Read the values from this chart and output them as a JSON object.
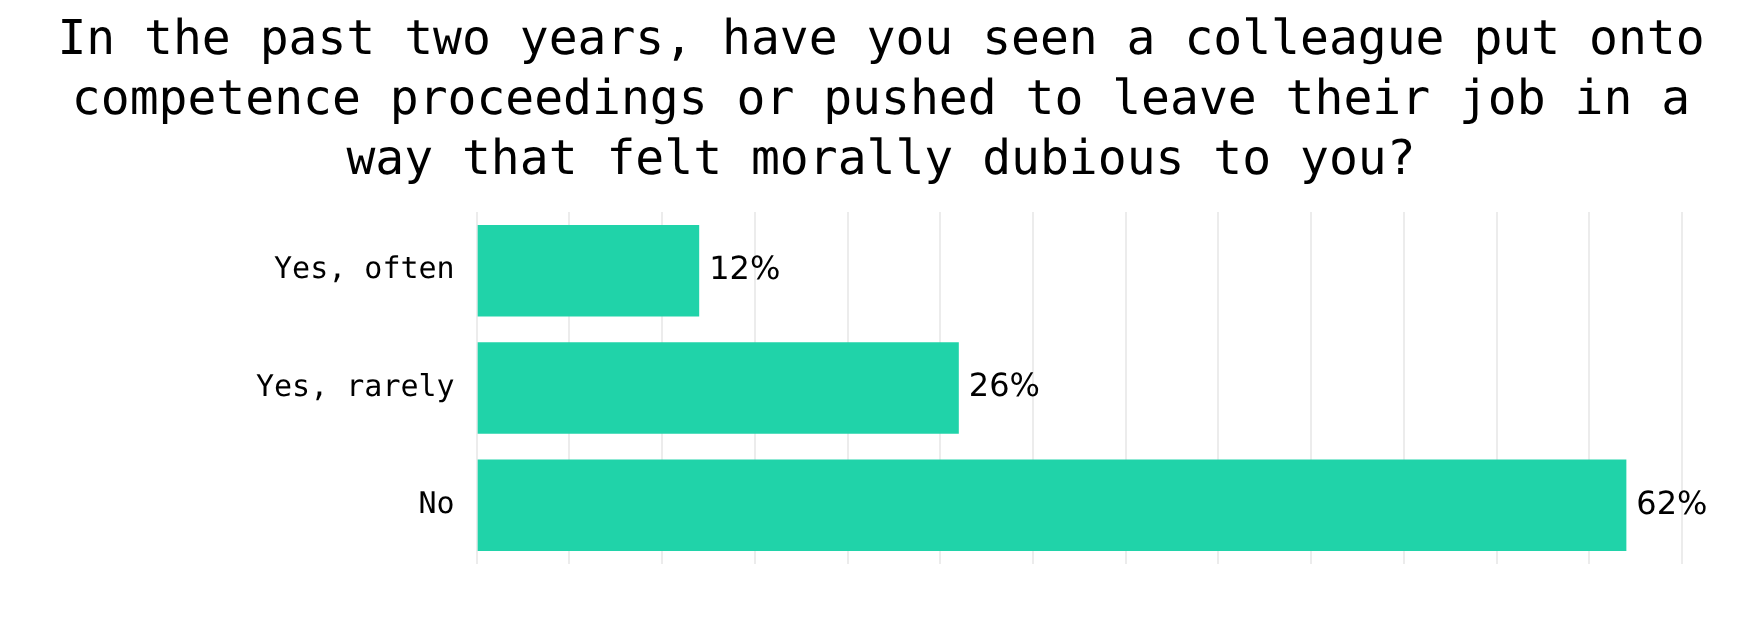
{
  "chart_data": {
    "type": "bar",
    "orientation": "horizontal",
    "title": "In the past two years, have you seen a colleague put onto competence proceedings or pushed to leave their job in a way that felt morally dubious to you?",
    "categories": [
      "Yes, often",
      "Yes, rarely",
      "No"
    ],
    "values": [
      12,
      26,
      62
    ],
    "value_labels": [
      "12%",
      "26%",
      "62%"
    ],
    "color": "#20d3a9",
    "xlim": [
      0,
      65
    ],
    "xticks": [
      {
        "value": 0,
        "label": null
      },
      {
        "value": 5,
        "label": null
      },
      {
        "value": 10,
        "label": null
      },
      {
        "value": 15,
        "label": null
      },
      {
        "value": 20,
        "label": null
      },
      {
        "value": 25,
        "label": null
      },
      {
        "value": 30,
        "label": null
      },
      {
        "value": 35,
        "label": null
      },
      {
        "value": 40,
        "label": null
      },
      {
        "value": 45,
        "label": null
      },
      {
        "value": 50,
        "label": null
      },
      {
        "value": 55,
        "label": null
      },
      {
        "value": 60,
        "label": null
      },
      {
        "value": 65,
        "label": null
      }
    ],
    "tick_labels": "y",
    "grid": "x",
    "legend": false
  }
}
